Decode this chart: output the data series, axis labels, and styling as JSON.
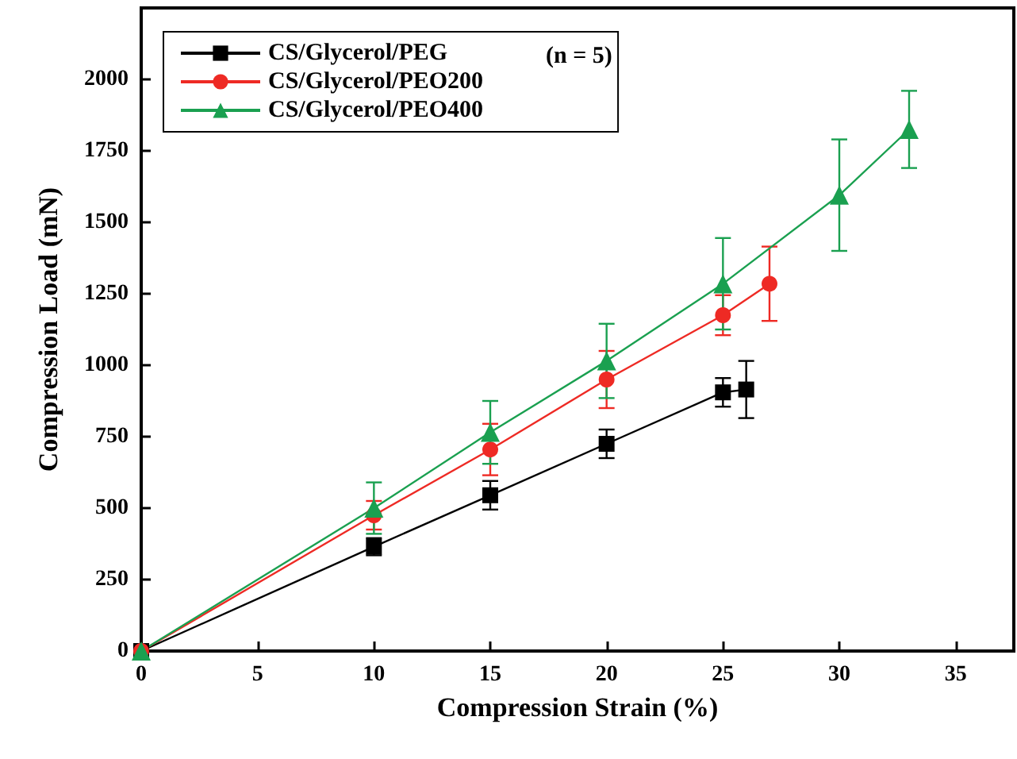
{
  "chart_data": {
    "type": "line",
    "xlabel": "Compression Strain (%)",
    "ylabel": "Compression Load (mN)",
    "xlim": [
      0,
      37.5
    ],
    "xticks": [
      0,
      5,
      10,
      15,
      20,
      25,
      30,
      35
    ],
    "ylim": [
      0,
      2250
    ],
    "yticks": [
      0,
      250,
      500,
      750,
      1000,
      1250,
      1500,
      1750,
      2000
    ],
    "grid": false,
    "legend": "top left",
    "annotations": [
      "(n = 5)"
    ],
    "series": [
      {
        "name": "CS/Glycerol/PEG",
        "color": "#000000",
        "marker": "square",
        "x": [
          0,
          10,
          15,
          20,
          25,
          26
        ],
        "values": [
          0,
          365,
          545,
          725,
          905,
          915
        ],
        "errors": [
          null,
          30,
          50,
          50,
          50,
          100
        ]
      },
      {
        "name": "CS/Glycerol/PEO200",
        "color": "#ee2a24",
        "marker": "circle",
        "x": [
          0,
          10,
          15,
          20,
          25,
          27
        ],
        "values": [
          0,
          475,
          705,
          950,
          1175,
          1285
        ],
        "errors": [
          null,
          50,
          90,
          100,
          70,
          130
        ]
      },
      {
        "name": "CS/Glycerol/PEO400",
        "color": "#1aa050",
        "marker": "triangle",
        "x": [
          0,
          10,
          15,
          20,
          25,
          30,
          33
        ],
        "values": [
          0,
          500,
          765,
          1015,
          1285,
          1595,
          1825
        ],
        "errors": [
          null,
          90,
          110,
          130,
          160,
          195,
          135
        ]
      }
    ]
  }
}
